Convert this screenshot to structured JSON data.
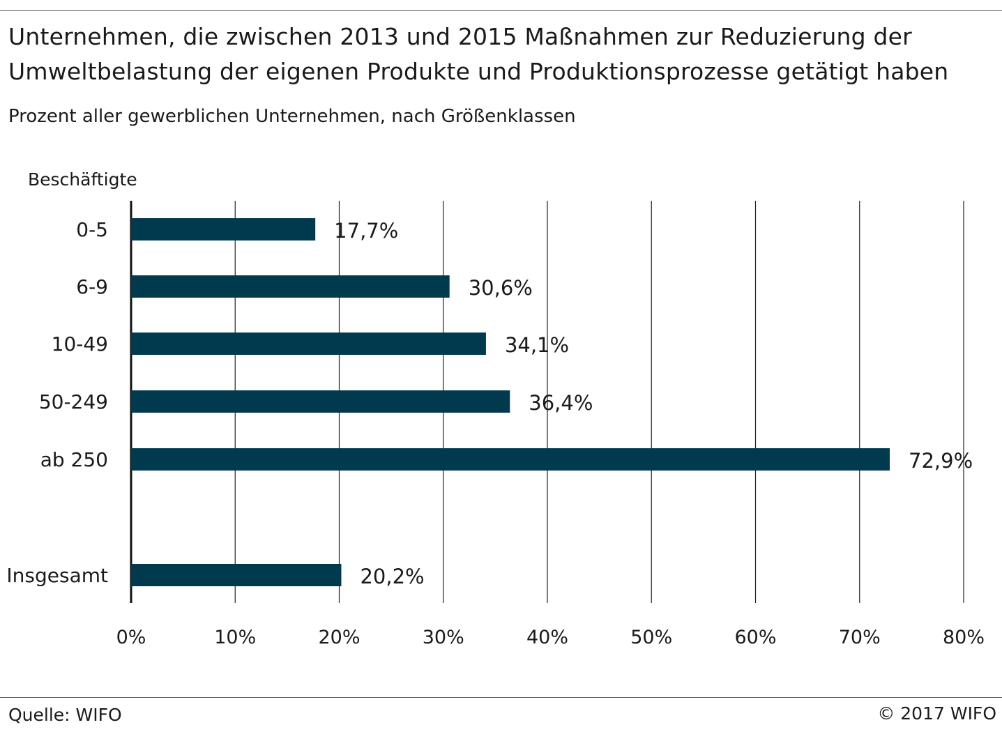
{
  "header": {
    "title_line1": "Unternehmen, die zwischen 2013 und 2015 Maßnahmen zur Reduzierung der",
    "title_line2": "Umweltbelastung der eigenen Produkte und Produktionsprozesse getätigt haben",
    "subtitle": "Prozent aller gewerblichen Unternehmen, nach Größenklassen"
  },
  "chart_data": {
    "type": "bar",
    "orientation": "horizontal",
    "title": "Unternehmen, die zwischen 2013 und 2015 Maßnahmen zur Reduzierung der Umweltbelastung der eigenen Produkte und Produktionsprozesse getätigt haben",
    "subtitle": "Prozent aller gewerblichen Unternehmen, nach Größenklassen",
    "category_axis_label": "Beschäftigte",
    "categories": [
      "0-5",
      "6-9",
      "10-49",
      "50-249",
      "ab 250",
      "Insgesamt"
    ],
    "values": [
      17.7,
      30.6,
      34.1,
      36.4,
      72.9,
      20.2
    ],
    "value_labels": [
      "17,7%",
      "30,6%",
      "34,1%",
      "36,4%",
      "72,9%",
      "20,2%"
    ],
    "xlim": [
      0,
      80
    ],
    "xticks": [
      0,
      10,
      20,
      30,
      40,
      50,
      60,
      70,
      80
    ],
    "xtick_labels": [
      "0%",
      "10%",
      "20%",
      "30%",
      "40%",
      "50%",
      "60%",
      "70%",
      "80%"
    ],
    "grid": true,
    "bar_color": "#013a4f"
  },
  "footer": {
    "source": "Quelle: WIFO",
    "copyright": "© 2017 WIFO"
  }
}
